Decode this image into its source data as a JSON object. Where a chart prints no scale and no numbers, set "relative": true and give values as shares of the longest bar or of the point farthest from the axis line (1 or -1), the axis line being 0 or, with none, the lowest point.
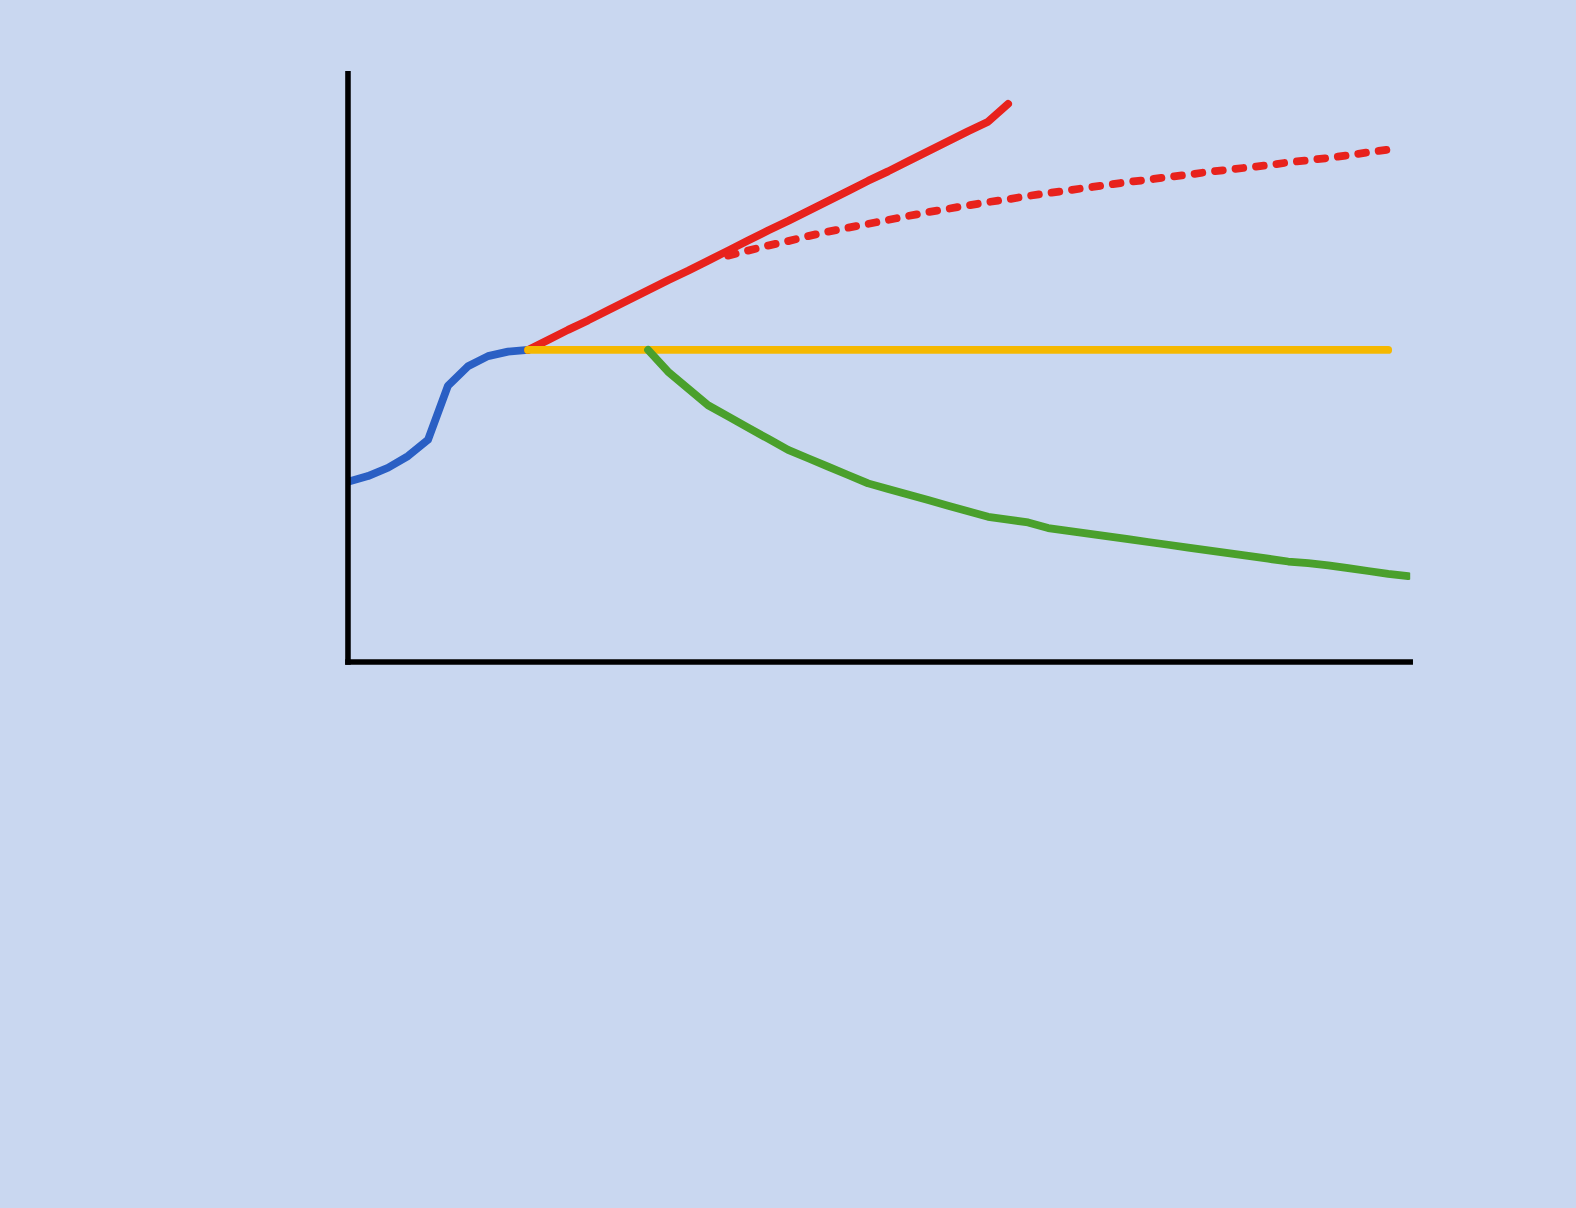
{
  "chart_data": {
    "type": "line",
    "relative": true,
    "categories": [
      null,
      null,
      null,
      null,
      null,
      null,
      null,
      null,
      null,
      null,
      null,
      null,
      null,
      null,
      null,
      null,
      null,
      null,
      null,
      null,
      null,
      null,
      null,
      null,
      null,
      null,
      null,
      null,
      null,
      null,
      null,
      null,
      null,
      null,
      null,
      null,
      null,
      null,
      null,
      null,
      null,
      null,
      null,
      null,
      null,
      null,
      null,
      null,
      null,
      null,
      null,
      null,
      null,
      null
    ],
    "series": [
      {
        "color": "#2a5fc4",
        "line_style": "solid",
        "values": [
          0.323,
          0.333,
          0.348,
          0.369,
          0.398,
          0.495,
          0.53,
          0.548,
          0.556,
          0.559,
          null,
          null,
          null,
          null,
          null,
          null,
          null,
          null,
          null,
          null,
          null,
          null,
          null,
          null,
          null,
          null,
          null,
          null,
          null,
          null,
          null,
          null,
          null,
          null,
          null,
          null,
          null,
          null,
          null,
          null,
          null,
          null,
          null,
          null,
          null,
          null,
          null,
          null,
          null,
          null,
          null,
          null,
          null,
          null
        ]
      },
      {
        "color": "#e8221c",
        "line_style": "solid",
        "values": [
          null,
          null,
          null,
          null,
          null,
          null,
          null,
          null,
          null,
          0.559,
          0.577,
          0.595,
          0.612,
          0.63,
          0.648,
          0.666,
          0.684,
          0.701,
          0.719,
          0.737,
          0.755,
          0.773,
          0.79,
          0.808,
          0.826,
          0.844,
          0.862,
          0.879,
          0.897,
          0.915,
          0.933,
          0.951,
          0.968,
          1.0,
          null,
          null,
          null,
          null,
          null,
          null,
          null,
          null,
          null,
          null,
          null,
          null,
          null,
          null,
          null,
          null,
          null,
          null,
          null,
          null
        ]
      },
      {
        "color": "#e8221c",
        "line_style": "dotted",
        "values": [
          null,
          null,
          null,
          null,
          null,
          null,
          null,
          null,
          null,
          null,
          null,
          null,
          null,
          null,
          null,
          null,
          null,
          null,
          null,
          0.728,
          0.737,
          0.746,
          0.754,
          0.763,
          0.771,
          0.778,
          0.785,
          0.792,
          0.799,
          0.806,
          0.812,
          0.818,
          0.824,
          0.829,
          0.835,
          0.84,
          0.845,
          0.85,
          0.855,
          0.86,
          0.864,
          0.869,
          0.873,
          0.878,
          0.882,
          0.886,
          0.89,
          0.895,
          0.899,
          0.903,
          0.908,
          0.913,
          0.918,
          null
        ]
      },
      {
        "color": "#f5b800",
        "line_style": "solid",
        "values": [
          null,
          null,
          null,
          null,
          null,
          null,
          null,
          null,
          null,
          0.559,
          0.559,
          0.559,
          0.559,
          0.559,
          0.559,
          0.559,
          0.559,
          0.559,
          0.559,
          0.559,
          0.559,
          0.559,
          0.559,
          0.559,
          0.559,
          0.559,
          0.559,
          0.559,
          0.559,
          0.559,
          0.559,
          0.559,
          0.559,
          0.559,
          0.559,
          0.559,
          0.559,
          0.559,
          0.559,
          0.559,
          0.559,
          0.559,
          0.559,
          0.559,
          0.559,
          0.559,
          0.559,
          0.559,
          0.559,
          0.559,
          0.559,
          0.559,
          0.559,
          null
        ]
      },
      {
        "color": "#4aa02c",
        "line_style": "solid",
        "values": [
          null,
          null,
          null,
          null,
          null,
          null,
          null,
          null,
          null,
          null,
          null,
          null,
          null,
          null,
          null,
          0.559,
          0.52,
          0.49,
          0.46,
          0.44,
          0.42,
          0.4,
          0.38,
          0.365,
          0.35,
          0.335,
          0.32,
          0.31,
          0.3,
          0.29,
          0.28,
          0.27,
          0.26,
          0.255,
          0.25,
          0.24,
          0.235,
          0.23,
          0.225,
          0.22,
          0.215,
          0.21,
          0.205,
          0.2,
          0.195,
          0.19,
          0.185,
          0.18,
          0.177,
          0.173,
          0.168,
          0.163,
          0.158,
          0.154
        ]
      }
    ]
  }
}
